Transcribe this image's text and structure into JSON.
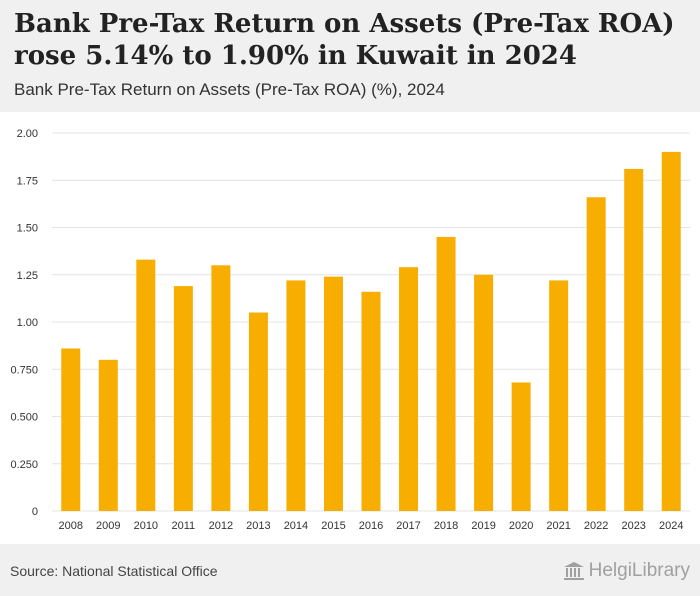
{
  "header": {
    "title": "Bank Pre-Tax Return on Assets (Pre-Tax ROA) rose 5.14% to 1.90% in Kuwait in 2024",
    "subtitle": "Bank Pre-Tax Return on Assets (Pre-Tax ROA) (%), 2024"
  },
  "footer": {
    "source": "Source: National Statistical Office",
    "logo_text": "HelgiLibrary"
  },
  "colors": {
    "bar": "#f7ae00",
    "grid": "#e4e4e4",
    "text": "#333333"
  },
  "chart_data": {
    "type": "bar",
    "title": "Bank Pre-Tax Return on Assets (Pre-Tax ROA) (%), 2024",
    "xlabel": "",
    "ylabel": "",
    "categories": [
      "2008",
      "2009",
      "2010",
      "2011",
      "2012",
      "2013",
      "2014",
      "2015",
      "2016",
      "2017",
      "2018",
      "2019",
      "2020",
      "2021",
      "2022",
      "2023",
      "2024"
    ],
    "values": [
      0.86,
      0.8,
      1.33,
      1.19,
      1.3,
      1.05,
      1.22,
      1.24,
      1.16,
      1.29,
      1.45,
      1.25,
      0.68,
      1.22,
      1.66,
      1.81,
      1.9
    ],
    "ylim": [
      0,
      2.0
    ],
    "yticks": [
      0,
      0.25,
      0.5,
      0.75,
      1.0,
      1.25,
      1.5,
      1.75,
      2.0
    ],
    "ytick_labels": [
      "0",
      "0.250",
      "0.500",
      "0.750",
      "1.00",
      "1.25",
      "1.50",
      "1.75",
      "2.00"
    ],
    "grid": true
  }
}
